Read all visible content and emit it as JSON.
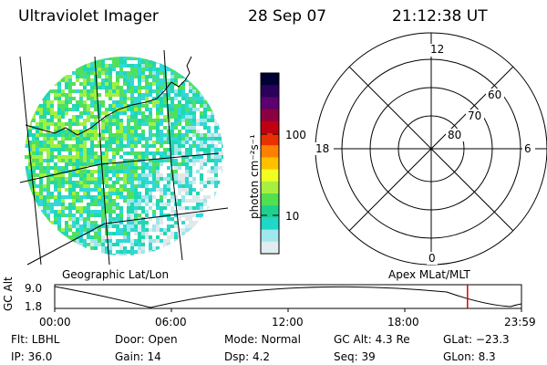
{
  "header": {
    "title": "Ultraviolet Imager",
    "date": "28 Sep 07",
    "time": "21:12:38 UT"
  },
  "map": {
    "label": "Geographic Lat/Lon"
  },
  "colorbar": {
    "unit_label": "photon cm⁻²s⁻¹",
    "ticks": [
      "100",
      "10"
    ],
    "colors": [
      "#000033",
      "#2b005a",
      "#5c0070",
      "#8b0040",
      "#c00010",
      "#e83000",
      "#ff8000",
      "#ffc000",
      "#f0ff20",
      "#a8f040",
      "#50e050",
      "#20d090",
      "#20d8c8",
      "#a0e8ec",
      "#e0ecf0"
    ]
  },
  "polar": {
    "label": "Apex MLat/MLT",
    "mlt_labels": {
      "top": "12",
      "bottom": "0",
      "left": "18",
      "right": "6"
    },
    "lat_labels": [
      "60",
      "70",
      "80"
    ]
  },
  "timeline": {
    "ylabel": "GC Alt",
    "y_ticks": [
      "9.0",
      "1.8"
    ],
    "x_ticks": [
      "00:00",
      "06:00",
      "12:00",
      "18:00",
      "23:59"
    ],
    "marker_time": "21:12:38",
    "marker_color": "#e00000"
  },
  "info": {
    "flt": "Flt: LBHL",
    "door": "Door: Open",
    "mode": "Mode: Normal",
    "gcalt": "GC Alt: 4.3 Re",
    "glat": "GLat: −23.3",
    "ip": "IP: 36.0",
    "gain": "Gain: 14",
    "dsp": "Dsp:      4.2",
    "seq": "Seq: 39",
    "glon": "GLon:   8.3"
  }
}
